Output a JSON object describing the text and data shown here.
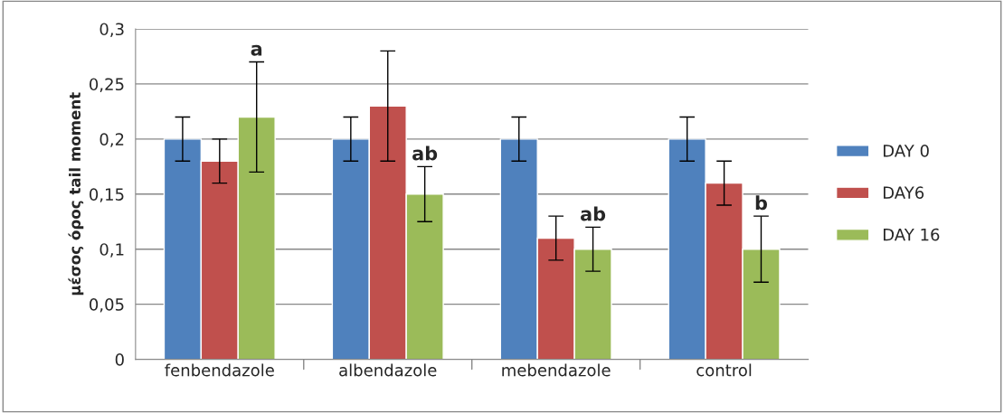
{
  "chart_data": {
    "type": "bar",
    "ylabel": "μέσος όρος tail moment",
    "categories": [
      "fenbendazole",
      "albendazole",
      "mebendazole",
      "control"
    ],
    "series": [
      {
        "name": "DAY 0",
        "color": "#4f81bd",
        "values": [
          0.2,
          0.2,
          0.2,
          0.2
        ],
        "errors": [
          0.02,
          0.02,
          0.02,
          0.02
        ]
      },
      {
        "name": "DAY6",
        "color": "#c0504d",
        "values": [
          0.18,
          0.23,
          0.11,
          0.16
        ],
        "errors": [
          0.02,
          0.05,
          0.02,
          0.02
        ]
      },
      {
        "name": "DAY 16",
        "color": "#9bbb59",
        "values": [
          0.22,
          0.15,
          0.1,
          0.1
        ],
        "errors": [
          0.05,
          0.025,
          0.02,
          0.03
        ]
      }
    ],
    "ylim": [
      0,
      0.3
    ],
    "yticks": [
      {
        "value": 0,
        "label": "0"
      },
      {
        "value": 0.05,
        "label": "0,05"
      },
      {
        "value": 0.1,
        "label": "0,1"
      },
      {
        "value": 0.15,
        "label": "0,15"
      },
      {
        "value": 0.2,
        "label": "0,2"
      },
      {
        "value": 0.25,
        "label": "0,25"
      },
      {
        "value": 0.3,
        "label": "0,3"
      }
    ],
    "grid": "y",
    "legend": "right",
    "annotations": [
      "a",
      "ab",
      "ab",
      "b"
    ]
  }
}
